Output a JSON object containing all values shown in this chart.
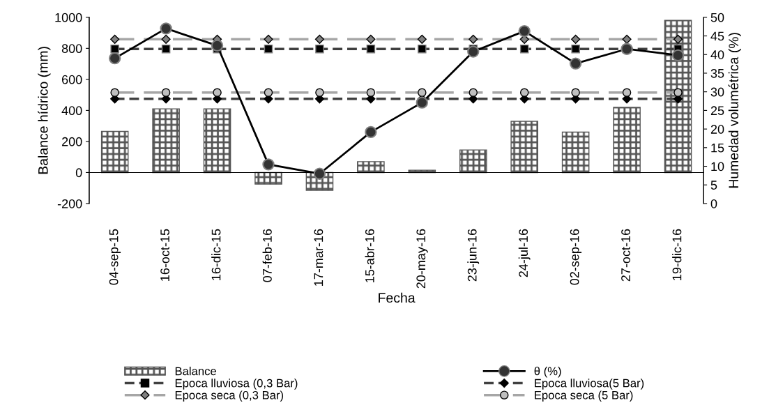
{
  "chart_data": {
    "type": "bar",
    "xlabel": "Fecha",
    "ylabel": "Balance hídrico (mm)",
    "y2label": "Humedad volumétrica (%)",
    "categories": [
      "04-sep-15",
      "16-oct-15",
      "16-dic-15",
      "07-feb-16",
      "17-mar-16",
      "15-abr-16",
      "20-may-16",
      "23-jun-16",
      "24-jul-16",
      "02-sep-16",
      "27-oct-16",
      "19-dic-16"
    ],
    "series": [
      {
        "name": "Balance",
        "color": "#555555",
        "values": [
          265,
          410,
          410,
          -75,
          -115,
          70,
          15,
          145,
          330,
          260,
          420,
          980
        ]
      },
      {
        "name": "θ (%)",
        "type": "line",
        "axis": "y2",
        "color": "#000000",
        "marker": "circle",
        "line_style": "solid",
        "values": [
          39,
          47,
          42.4,
          10.5,
          8,
          19.2,
          27.1,
          40.8,
          46.3,
          37.6,
          41.5,
          39.8
        ]
      },
      {
        "name": "Epoca lluviosa (0,3 Bar)",
        "type": "line",
        "axis": "y2",
        "color": "#404040",
        "marker": "square",
        "line_style": "dashed",
        "values": [
          41.5,
          41.5,
          41.5,
          41.5,
          41.5,
          41.5,
          41.5,
          41.5,
          41.5,
          41.5,
          41.5,
          41.5
        ]
      },
      {
        "name": "Epoca lluviosa(5 Bar)",
        "type": "line",
        "axis": "y2",
        "color": "#404040",
        "marker": "diamond",
        "line_style": "dashed",
        "values": [
          28.1,
          28.1,
          28.1,
          28.1,
          28.1,
          28.1,
          28.1,
          28.1,
          28.1,
          28.1,
          28.1,
          28.1
        ]
      },
      {
        "name": "Epoca seca (0,3 Bar)",
        "type": "line",
        "axis": "y2",
        "color": "#a6a6a6",
        "marker": "diamond",
        "line_style": "dashed",
        "values": [
          44.1,
          44.1,
          44.1,
          44.1,
          44.1,
          44.1,
          44.1,
          44.1,
          44.1,
          44.1,
          44.1,
          44.1
        ]
      },
      {
        "name": "Epoca seca (5 Bar)",
        "type": "line",
        "axis": "y2",
        "color": "#a6a6a6",
        "marker": "circle",
        "line_style": "dashed",
        "values": [
          29.8,
          29.8,
          29.8,
          29.8,
          29.8,
          29.8,
          29.8,
          29.8,
          29.8,
          29.8,
          29.8,
          29.8
        ]
      }
    ],
    "ylim": [
      -200,
      1000
    ],
    "yticks": [
      -200,
      0,
      200,
      400,
      600,
      800,
      1000
    ],
    "y2lim": [
      0,
      50
    ],
    "y2ticks": [
      0,
      5,
      10,
      15,
      20,
      25,
      30,
      35,
      40,
      45,
      50
    ],
    "legend": "bottom",
    "grid": false
  }
}
